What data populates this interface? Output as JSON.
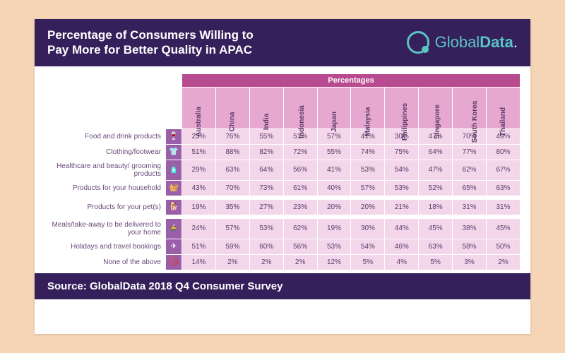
{
  "header": {
    "title": "Percentage of Consumers Willing to Pay More for Better Quality in APAC",
    "logo_text_1": "Global",
    "logo_text_2": "Data",
    "logo_dot": "."
  },
  "table": {
    "pcts_label": "Percentages",
    "columns": [
      "Australia",
      "China",
      "India",
      "Indonesia",
      "Japan",
      "Malaysia",
      "Philippines",
      "Singapore",
      "South Korea",
      "Thailand"
    ],
    "rows": [
      {
        "label": "Food and drink products",
        "icon": "🍷",
        "vals": [
          "23%",
          "76%",
          "55%",
          "51%",
          "57%",
          "41%",
          "30%",
          "47%",
          "70%",
          "49%"
        ]
      },
      {
        "label": "Clothing/footwear",
        "icon": "👕",
        "vals": [
          "51%",
          "88%",
          "82%",
          "72%",
          "55%",
          "74%",
          "75%",
          "64%",
          "77%",
          "80%"
        ]
      },
      {
        "label": "Healthcare and beauty/ grooming products",
        "icon": "🧴",
        "vals": [
          "29%",
          "63%",
          "64%",
          "56%",
          "41%",
          "53%",
          "54%",
          "47%",
          "62%",
          "67%"
        ]
      },
      {
        "label": "Products for your household",
        "icon": "🧺",
        "vals": [
          "43%",
          "70%",
          "73%",
          "61%",
          "40%",
          "57%",
          "53%",
          "52%",
          "65%",
          "63%"
        ]
      },
      {
        "label": "Products for your pet(s)",
        "icon": "🐕",
        "vals": [
          "19%",
          "35%",
          "27%",
          "23%",
          "20%",
          "20%",
          "21%",
          "18%",
          "31%",
          "31%"
        ]
      },
      {
        "label": "Meals/take-away to be delivered to your home",
        "icon": "🍲",
        "vals": [
          "24%",
          "57%",
          "53%",
          "62%",
          "19%",
          "30%",
          "44%",
          "45%",
          "38%",
          "45%"
        ]
      },
      {
        "label": "Holidays and travel bookings",
        "icon": "✈",
        "vals": [
          "51%",
          "59%",
          "60%",
          "56%",
          "53%",
          "54%",
          "46%",
          "63%",
          "58%",
          "50%"
        ]
      },
      {
        "label": "None of the above",
        "icon": "🚫",
        "vals": [
          "14%",
          "2%",
          "2%",
          "2%",
          "12%",
          "5%",
          "4%",
          "5%",
          "3%",
          "2%"
        ]
      }
    ],
    "gap_after": [
      3,
      4
    ]
  },
  "footer": {
    "text": "Source: GlobalData 2018 Q4 Consumer Survey"
  },
  "style": {
    "page_bg": "#f5d5b5",
    "panel_bg": "#ffffff",
    "header_bg": "#36205c",
    "accent": "#58c4c4",
    "pcts_bg": "#b84a8f",
    "colhdr_bg": "#e7a8cf",
    "cell_bg": "#f4d6ea",
    "icon_bg": "#9a5fa8",
    "text": "#5a3a6a",
    "title_fontsize": 17,
    "cell_fontsize": 10,
    "footer_fontsize": 15
  }
}
